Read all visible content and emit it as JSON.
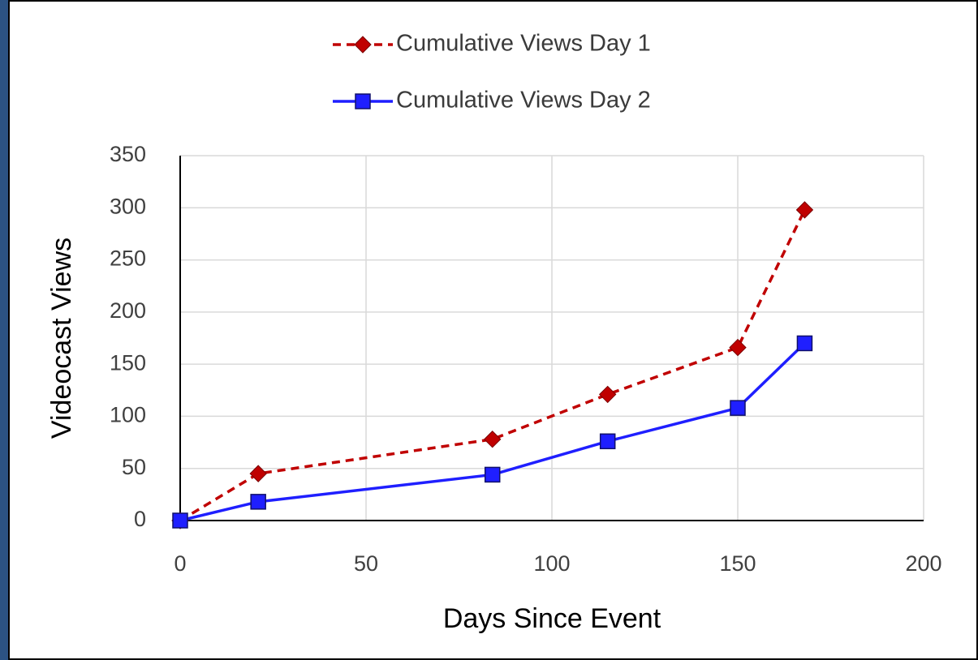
{
  "chart_data": {
    "type": "line",
    "x_label": "Days Since Event",
    "y_label": "Videocast Views",
    "x": [
      0,
      21,
      84,
      115,
      150,
      168
    ],
    "series": [
      {
        "name": "Cumulative Views Day 1",
        "color": "#c00000",
        "line_style": "dashed",
        "marker": "diamond",
        "values": [
          0,
          45,
          78,
          121,
          166,
          298
        ]
      },
      {
        "name": "Cumulative Views Day 2",
        "color": "#1f1fff",
        "line_style": "solid",
        "marker": "square",
        "values": [
          0,
          18,
          44,
          76,
          108,
          170
        ]
      }
    ],
    "xlim": [
      0,
      200
    ],
    "xticks": [
      0,
      50,
      100,
      150,
      200
    ],
    "ylim": [
      0,
      350
    ],
    "yticks": [
      0,
      50,
      100,
      150,
      200,
      250,
      300,
      350
    ],
    "grid": true,
    "legend": "top"
  }
}
